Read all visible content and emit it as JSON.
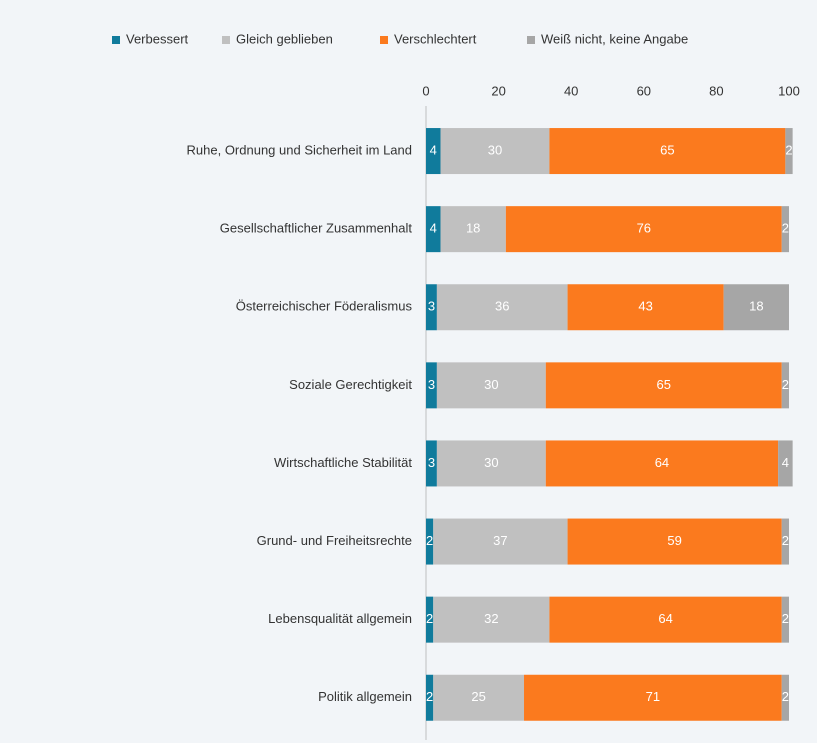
{
  "chart_data": {
    "type": "bar",
    "orientation": "horizontal",
    "stacked": true,
    "categories": [
      "Ruhe, Ordnung und Sicherheit im Land",
      "Gesellschaftlicher Zusammenhalt",
      "Österreichischer Föderalismus",
      "Soziale Gerechtigkeit",
      "Wirtschaftliche Stabilität",
      "Grund- und Freiheitsrechte",
      "Lebensqualität allgemein",
      "Politik allgemein"
    ],
    "series": [
      {
        "name": "Verbessert",
        "color": "#107b9c",
        "values": [
          4,
          4,
          3,
          3,
          3,
          2,
          2,
          2
        ]
      },
      {
        "name": "Gleich geblieben",
        "color": "#c0c0c0",
        "values": [
          30,
          18,
          36,
          30,
          30,
          37,
          32,
          25
        ]
      },
      {
        "name": "Verschlechtert",
        "color": "#fb7a1e",
        "values": [
          65,
          76,
          43,
          65,
          64,
          59,
          64,
          71
        ]
      },
      {
        "name": "Weiß nicht, keine Angabe",
        "color": "#a6a6a6",
        "values": [
          2,
          2,
          18,
          2,
          4,
          2,
          2,
          2
        ]
      }
    ],
    "xlim": [
      0,
      100
    ],
    "xticks": [
      0,
      20,
      40,
      60,
      80,
      100
    ],
    "legend": "top"
  }
}
